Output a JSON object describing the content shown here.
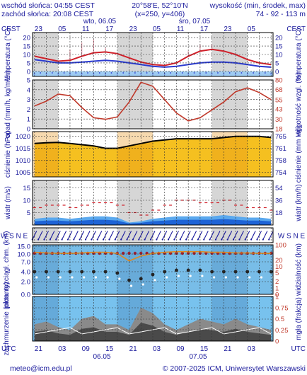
{
  "header": {
    "sunrise": "wschód słońca: 04:55 CEST",
    "sunset": "zachód słońca: 20:08 CEST",
    "coords": "20°58'E, 52°10'N",
    "grid": "(x=250, y=406)",
    "elev_label": "wysokość (min, środek, max)",
    "elev_values": "74 - 92 - 113 m"
  },
  "top_axis": {
    "tz_left": "CEST",
    "tz_right": "CEST",
    "day1_label": "wto, 06.05",
    "day2_label": "śro, 07.05",
    "hour_labels": [
      "23",
      "05",
      "11",
      "17",
      "23",
      "05",
      "11",
      "17",
      "23",
      "05"
    ]
  },
  "bottom_axis": {
    "tz_left": "UTC",
    "tz_right": "UTC",
    "hour_labels": [
      "21",
      "03",
      "09",
      "15",
      "21",
      "03",
      "09",
      "15",
      "21",
      "03"
    ],
    "day1_label": "06.05",
    "day2_label": "07.05"
  },
  "footer": {
    "email": "meteo@icm.edu.pl",
    "copyright": "© 2007-2025 ICM, Uniwersytet Warszawski"
  },
  "colors": {
    "text": "#1a1a9c",
    "shade": "#d6d6d6",
    "temp_line": "#d0202a",
    "dew_line": "#2a3ad0",
    "humidity_line": "#c0392b",
    "pressure_fill": "#f5c020",
    "pressure_fill_dark": "#e7951a",
    "wind_fill": "#1e63d6",
    "wind_fill_light": "#5aa8ee",
    "cloud_sky": "#78c2ee",
    "cloud_gray": "#8a8a8a"
  },
  "chart_data": [
    {
      "name": "temperature",
      "type": "line",
      "ylabel_left": "temperatura (°C)",
      "ylabel_right": "temperatura (°C)",
      "yticks": [
        "20",
        "15",
        "10",
        "5",
        "0"
      ],
      "ylim": [
        -3,
        23
      ],
      "x_hours": [
        0,
        3,
        6,
        9,
        12,
        15,
        18,
        21,
        24,
        27,
        30,
        33,
        36,
        39,
        42,
        45,
        48,
        51,
        54,
        57,
        60
      ],
      "series": [
        {
          "name": "temperature",
          "values": [
            9,
            7.5,
            6,
            6.5,
            9,
            11,
            11.5,
            10.5,
            8,
            5.5,
            4,
            3.5,
            5,
            9,
            12,
            13,
            12,
            10,
            7,
            5,
            4
          ]
        },
        {
          "name": "dew point",
          "values": [
            7,
            6,
            5,
            5,
            5.5,
            6,
            6.5,
            6,
            5,
            4,
            3,
            2.5,
            3,
            4,
            5,
            5.5,
            5.5,
            5,
            4,
            3,
            2.5
          ]
        }
      ],
      "spread_hours": [
        6,
        9,
        12,
        15,
        18,
        24,
        30,
        36,
        39,
        42,
        45,
        48
      ],
      "spread_values": [
        6,
        13,
        17,
        19,
        14,
        5,
        3,
        5,
        12,
        16,
        16,
        12
      ]
    },
    {
      "name": "precipitation-humidity",
      "type": "line",
      "ylabel_left": "opad (mm/h, kg/m²/h)",
      "ylabel_right": "wilgotność wzgl. (%)",
      "yticks_left": [
        "5",
        "4",
        "3",
        "2",
        "1",
        "0"
      ],
      "yticks_right": [
        "80",
        "68",
        "55",
        "43",
        "30",
        "18"
      ],
      "y_left_lim": [
        0,
        5
      ],
      "y_right_lim": [
        18,
        80
      ],
      "humidity_hours": [
        0,
        3,
        6,
        9,
        12,
        15,
        18,
        21,
        24,
        27,
        30,
        33,
        36,
        39,
        42,
        45,
        48,
        51,
        54,
        57,
        60
      ],
      "humidity_values": [
        47,
        53,
        62,
        60,
        45,
        32,
        30,
        33,
        52,
        77,
        72,
        55,
        38,
        28,
        32,
        42,
        52,
        65,
        70,
        64,
        55
      ]
    },
    {
      "name": "pressure",
      "type": "area",
      "ylabel_left": "ciśnienie (hPa)",
      "ylabel_right": "ciśnienie (mm Hg)",
      "yticks_left": [
        "1020",
        "1015",
        "1010",
        "1005"
      ],
      "yticks_right": [
        "765",
        "761",
        "758",
        "754"
      ],
      "ylim": [
        1003,
        1022
      ],
      "x_hours": [
        0,
        3,
        6,
        9,
        12,
        15,
        18,
        21,
        24,
        27,
        30,
        33,
        36,
        39,
        42,
        45,
        48,
        51,
        54,
        57,
        60
      ],
      "values": [
        1017,
        1017.3,
        1017.5,
        1017,
        1016.5,
        1016,
        1015,
        1015,
        1016,
        1017,
        1018,
        1018.5,
        1019,
        1019,
        1019,
        1019,
        1019.5,
        1020,
        1020,
        1020,
        1019.5
      ]
    },
    {
      "name": "wind",
      "type": "area",
      "ylabel_left": "wiatr (m/s)",
      "ylabel_right": "wiatr (km/h)",
      "yticks_left": [
        "15",
        "10",
        "5"
      ],
      "yticks_right": [
        "54",
        "36",
        "18"
      ],
      "ylim": [
        0,
        18
      ],
      "x_hours": [
        0,
        3,
        6,
        9,
        12,
        15,
        18,
        21,
        24,
        27,
        30,
        33,
        36,
        39,
        42,
        45,
        48,
        51,
        54,
        57,
        60
      ],
      "speed": [
        2.5,
        3,
        3,
        2.5,
        3,
        3.5,
        3.5,
        3,
        1,
        1.5,
        2.5,
        3,
        3.5,
        3.5,
        3.5,
        3.5,
        4,
        3.5,
        3,
        3,
        2.5
      ],
      "gusts": [
        7,
        8,
        8,
        7,
        8,
        9,
        9,
        8,
        5,
        4,
        6,
        8,
        10,
        10,
        9,
        9,
        10,
        8,
        7,
        7,
        6
      ]
    },
    {
      "name": "wind-direction",
      "type": "scatter",
      "ylabel_left": "W, S, N, E",
      "ylabel_right": "W, S, N, E",
      "note": "wind barbs, predominantly from NE"
    },
    {
      "name": "visibility-cloudbase",
      "type": "scatter",
      "ylabel_left": "pion. rozciągł. chm. (km)",
      "ylabel_right": "widzialność (km)",
      "yticks_left": [
        "15.0",
        "10.0",
        "7.0",
        "4.0",
        "2.0",
        "0.0"
      ],
      "yticks_right": [
        "100",
        "20",
        "10",
        "5",
        "2",
        "1",
        "0"
      ],
      "visibility_hours": [
        0,
        3,
        6,
        9,
        12,
        15,
        18,
        21,
        24,
        27,
        30,
        33,
        36,
        39,
        42,
        45,
        48,
        51,
        54,
        57,
        60
      ],
      "visibility_values": [
        45,
        42,
        40,
        40,
        42,
        45,
        45,
        40,
        18,
        30,
        40,
        45,
        48,
        48,
        48,
        45,
        45,
        42,
        42,
        40,
        40
      ]
    },
    {
      "name": "cloud-cover",
      "type": "area",
      "ylabel_left": "zachmurzenie (oktanty)",
      "ylabel_right": "mgła (frakcja)",
      "yticks_right": [
        "1",
        "0.75",
        "0.5",
        "0.25",
        "0"
      ],
      "x_hours": [
        0,
        3,
        6,
        9,
        12,
        15,
        18,
        21,
        24,
        27,
        30,
        33,
        36,
        39,
        42,
        45,
        48,
        51,
        54,
        57,
        60
      ],
      "cloud_total": [
        3,
        3.5,
        2.5,
        2,
        4,
        4.5,
        3,
        3,
        2,
        6,
        5,
        3,
        2,
        3,
        4,
        3.5,
        3,
        4,
        3,
        2.5,
        2
      ]
    }
  ]
}
